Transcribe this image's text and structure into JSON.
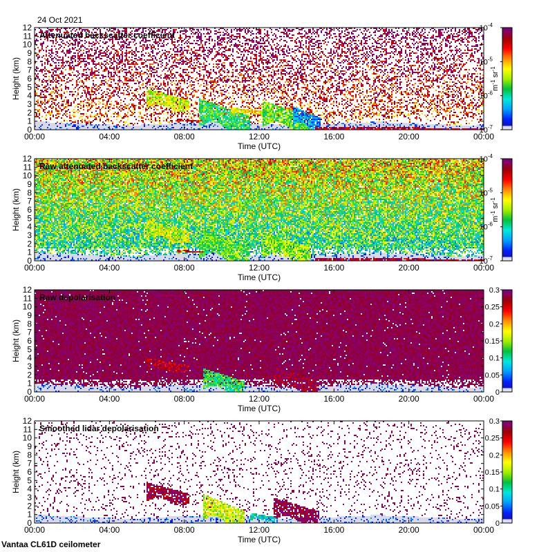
{
  "date_label": "24 Oct 2021",
  "footer_label": "Vantaa CL61D ceilometer",
  "colormap": [
    "#1a0f8f",
    "#0020ff",
    "#00a0ff",
    "#00e8e0",
    "#00c040",
    "#a0f000",
    "#ffff00",
    "#ff9000",
    "#ff0000",
    "#a00000",
    "#800080"
  ],
  "chart_data": [
    {
      "type": "heatmap",
      "title": "Attenuated backscatter coefficient",
      "xlabel": "Time (UTC)",
      "ylabel": "Height (km)",
      "x_ticks": [
        "00:00",
        "04:00",
        "08:00",
        "12:00",
        "16:00",
        "20:00",
        "00:00"
      ],
      "xlim_hours": [
        0,
        24
      ],
      "y_ticks": [
        "0",
        "1",
        "2",
        "3",
        "4",
        "5",
        "6",
        "7",
        "8",
        "9",
        "10",
        "11",
        "12"
      ],
      "ylim_km": [
        0,
        12
      ],
      "colorbar": {
        "scale": "log",
        "ticks": [
          "10",
          "10",
          "10",
          "10"
        ],
        "exponents": [
          "-7",
          "-6",
          "-5",
          "-4"
        ],
        "ticks_values": [
          1e-07,
          1e-06,
          1e-05,
          0.0001
        ],
        "units": "m-1 sr-1",
        "unit_base": [
          "m",
          "sr"
        ],
        "unit_exp": [
          "-1",
          "-1"
        ]
      },
      "noise_density": 0.35,
      "noise_colors": [
        0.55,
        0.95
      ],
      "layers": [
        {
          "t0": 5.3,
          "t1": 5.9,
          "h0": 6.55,
          "h1": 6.8,
          "c": 0.8
        },
        {
          "t0": 6.0,
          "t1": 8.3,
          "h0": 2.5,
          "h1": 4.8,
          "c": 0.55
        },
        {
          "t0": 8.8,
          "t1": 11.5,
          "h0": 0.2,
          "h1": 3.7,
          "c": 0.4
        },
        {
          "t0": 10.5,
          "t1": 13.0,
          "h0": 1.8,
          "h1": 2.6,
          "c": 0.6
        },
        {
          "t0": 12.2,
          "t1": 14.8,
          "h0": 0.3,
          "h1": 3.4,
          "c": 0.45
        },
        {
          "t0": 13.8,
          "t1": 15.3,
          "h0": 0.4,
          "h1": 2.8,
          "c": 0.2
        },
        {
          "t0": 7.6,
          "t1": 9.0,
          "h0": 1.0,
          "h1": 1.3,
          "c": 0.85
        },
        {
          "t0": 15.0,
          "t1": 24.0,
          "h0": 0.0,
          "h1": 0.4,
          "c": 0.9
        }
      ],
      "boundary_layer_km": 0.9
    },
    {
      "type": "heatmap",
      "title": "Raw attenuated backscatter coefficient",
      "xlabel": "Time (UTC)",
      "ylabel": "Height (km)",
      "x_ticks": [
        "00:00",
        "04:00",
        "08:00",
        "12:00",
        "16:00",
        "20:00",
        "00:00"
      ],
      "xlim_hours": [
        0,
        24
      ],
      "y_ticks": [
        "0",
        "1",
        "2",
        "3",
        "4",
        "5",
        "6",
        "7",
        "8",
        "9",
        "10",
        "11",
        "12"
      ],
      "ylim_km": [
        0,
        12
      ],
      "colorbar": {
        "scale": "log",
        "ticks": [
          "10",
          "10",
          "10",
          "10"
        ],
        "exponents": [
          "-7",
          "-6",
          "-5",
          "-4"
        ],
        "ticks_values": [
          1e-07,
          1e-06,
          1e-05,
          0.0001
        ],
        "units": "m-1 sr-1",
        "unit_base": [
          "m",
          "sr"
        ],
        "unit_exp": [
          "-1",
          "-1"
        ]
      },
      "noise_density": 0.95,
      "noise_colors": [
        0.1,
        0.6
      ],
      "layers": [
        {
          "t0": 6.0,
          "t1": 8.3,
          "h0": 2.5,
          "h1": 4.8,
          "c": 0.55
        },
        {
          "t0": 8.8,
          "t1": 11.5,
          "h0": 0.2,
          "h1": 3.7,
          "c": 0.45
        },
        {
          "t0": 12.2,
          "t1": 14.8,
          "h0": 0.3,
          "h1": 3.4,
          "c": 0.5
        },
        {
          "t0": 7.6,
          "t1": 9.0,
          "h0": 1.0,
          "h1": 1.3,
          "c": 0.85
        },
        {
          "t0": 15.0,
          "t1": 24.0,
          "h0": 0.0,
          "h1": 0.4,
          "c": 0.9
        }
      ],
      "boundary_layer_km": 0.9
    },
    {
      "type": "heatmap",
      "title": "Raw depolarisation",
      "xlabel": "Time (UTC)",
      "ylabel": "Height (km)",
      "x_ticks": [
        "00:00",
        "04:00",
        "08:00",
        "12:00",
        "16:00",
        "20:00",
        "00:00"
      ],
      "xlim_hours": [
        0,
        24
      ],
      "y_ticks": [
        "0",
        "1",
        "2",
        "3",
        "4",
        "5",
        "6",
        "7",
        "8",
        "9",
        "10",
        "11",
        "12"
      ],
      "ylim_km": [
        0,
        12
      ],
      "colorbar": {
        "scale": "linear",
        "ticks": [
          "0",
          "0.05",
          "0.1",
          "0.15",
          "0.2",
          "0.25",
          "0.3"
        ],
        "ticks_values": [
          0,
          0.05,
          0.1,
          0.15,
          0.2,
          0.25,
          0.3
        ]
      },
      "noise_density": 0.98,
      "noise_colors": [
        0.92,
        1.0
      ],
      "layers": [
        {
          "t0": 6.0,
          "t1": 8.3,
          "h0": 2.5,
          "h1": 4.0,
          "c": 0.9
        },
        {
          "t0": 9.0,
          "t1": 11.2,
          "h0": 0.2,
          "h1": 2.8,
          "c": 0.4
        },
        {
          "t0": 12.8,
          "t1": 15.2,
          "h0": 0.3,
          "h1": 3.0,
          "c": 0.95
        }
      ],
      "boundary_layer_km": 0.9
    },
    {
      "type": "heatmap",
      "title": "Smoothed lidar depolarisation",
      "xlabel": "Time (UTC)",
      "ylabel": "Height (km)",
      "x_ticks": [
        "00:00",
        "04:00",
        "08:00",
        "12:00",
        "16:00",
        "20:00",
        "00:00"
      ],
      "xlim_hours": [
        0,
        24
      ],
      "y_ticks": [
        "0",
        "1",
        "2",
        "3",
        "4",
        "5",
        "6",
        "7",
        "8",
        "9",
        "10",
        "11",
        "12"
      ],
      "ylim_km": [
        0,
        12
      ],
      "colorbar": {
        "scale": "linear",
        "ticks": [
          "0",
          "0.05",
          "0.1",
          "0.15",
          "0.2",
          "0.25",
          "0.3"
        ],
        "ticks_values": [
          0,
          0.05,
          0.1,
          0.15,
          0.2,
          0.25,
          0.3
        ]
      },
      "noise_density": 0.09,
      "noise_colors": [
        0.92,
        1.0
      ],
      "layers": [
        {
          "t0": 6.0,
          "t1": 8.3,
          "h0": 2.5,
          "h1": 4.8,
          "c": 0.95
        },
        {
          "t0": 9.0,
          "t1": 11.2,
          "h0": 0.2,
          "h1": 3.4,
          "c": 0.55
        },
        {
          "t0": 12.8,
          "t1": 15.2,
          "h0": 0.3,
          "h1": 3.0,
          "c": 0.97
        },
        {
          "t0": 11.5,
          "t1": 13.0,
          "h0": 0.3,
          "h1": 1.2,
          "c": 0.3
        }
      ],
      "boundary_layer_km": 0.9
    }
  ]
}
